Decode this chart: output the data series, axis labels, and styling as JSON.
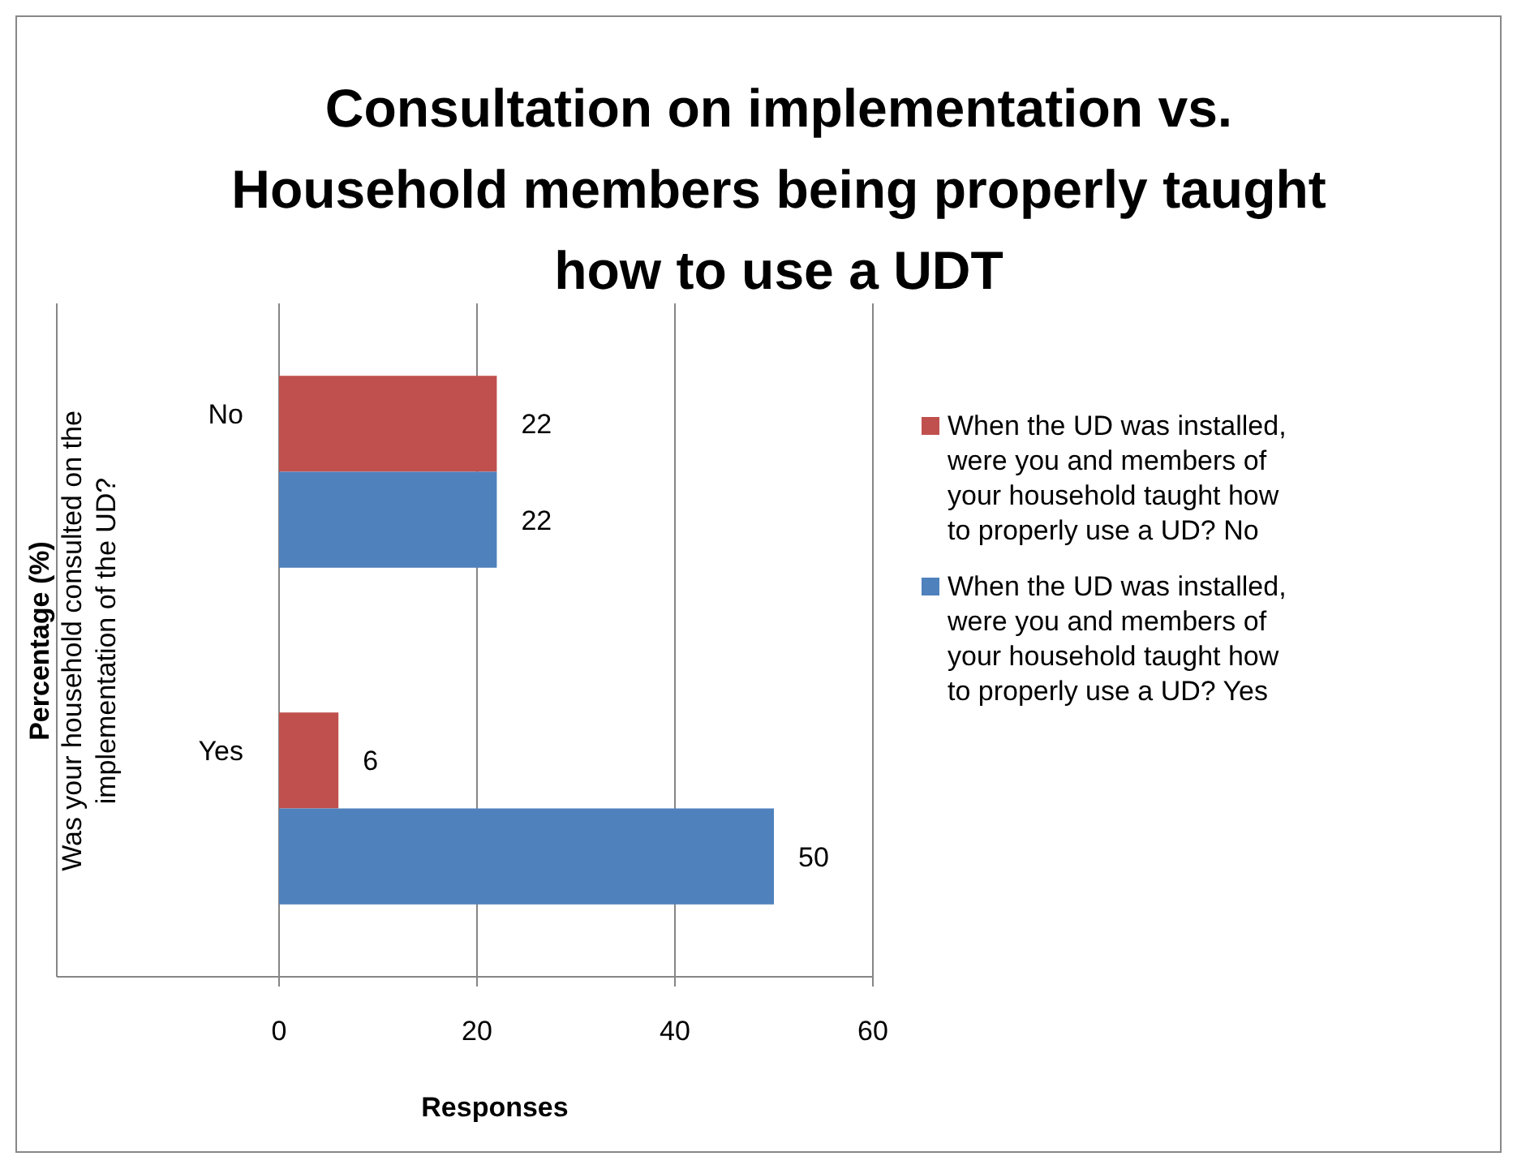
{
  "chart_data": {
    "type": "bar",
    "orientation": "horizontal",
    "title": "Consultation on implementation vs. Household members being properly taught how to use a UDT",
    "xlabel": "Responses",
    "ylabel": "Was your household consulted on the implementation of the UD?",
    "annotations": [
      "Percentage (%)"
    ],
    "categories": [
      "No",
      "Yes"
    ],
    "series": [
      {
        "name": "When the UD was installed, were you and members of your household taught how to properly use a UD? No",
        "color": "#c0504d",
        "values": [
          22,
          6
        ]
      },
      {
        "name": "When the UD was installed, were you and members of your household taught how to properly use a UD? Yes",
        "color": "#4f81bd",
        "values": [
          22,
          50
        ]
      }
    ],
    "xlim": [
      0,
      60
    ],
    "xticks": [
      0,
      20,
      40,
      60
    ],
    "grid": "x",
    "legend": "right",
    "data_labels": true
  }
}
